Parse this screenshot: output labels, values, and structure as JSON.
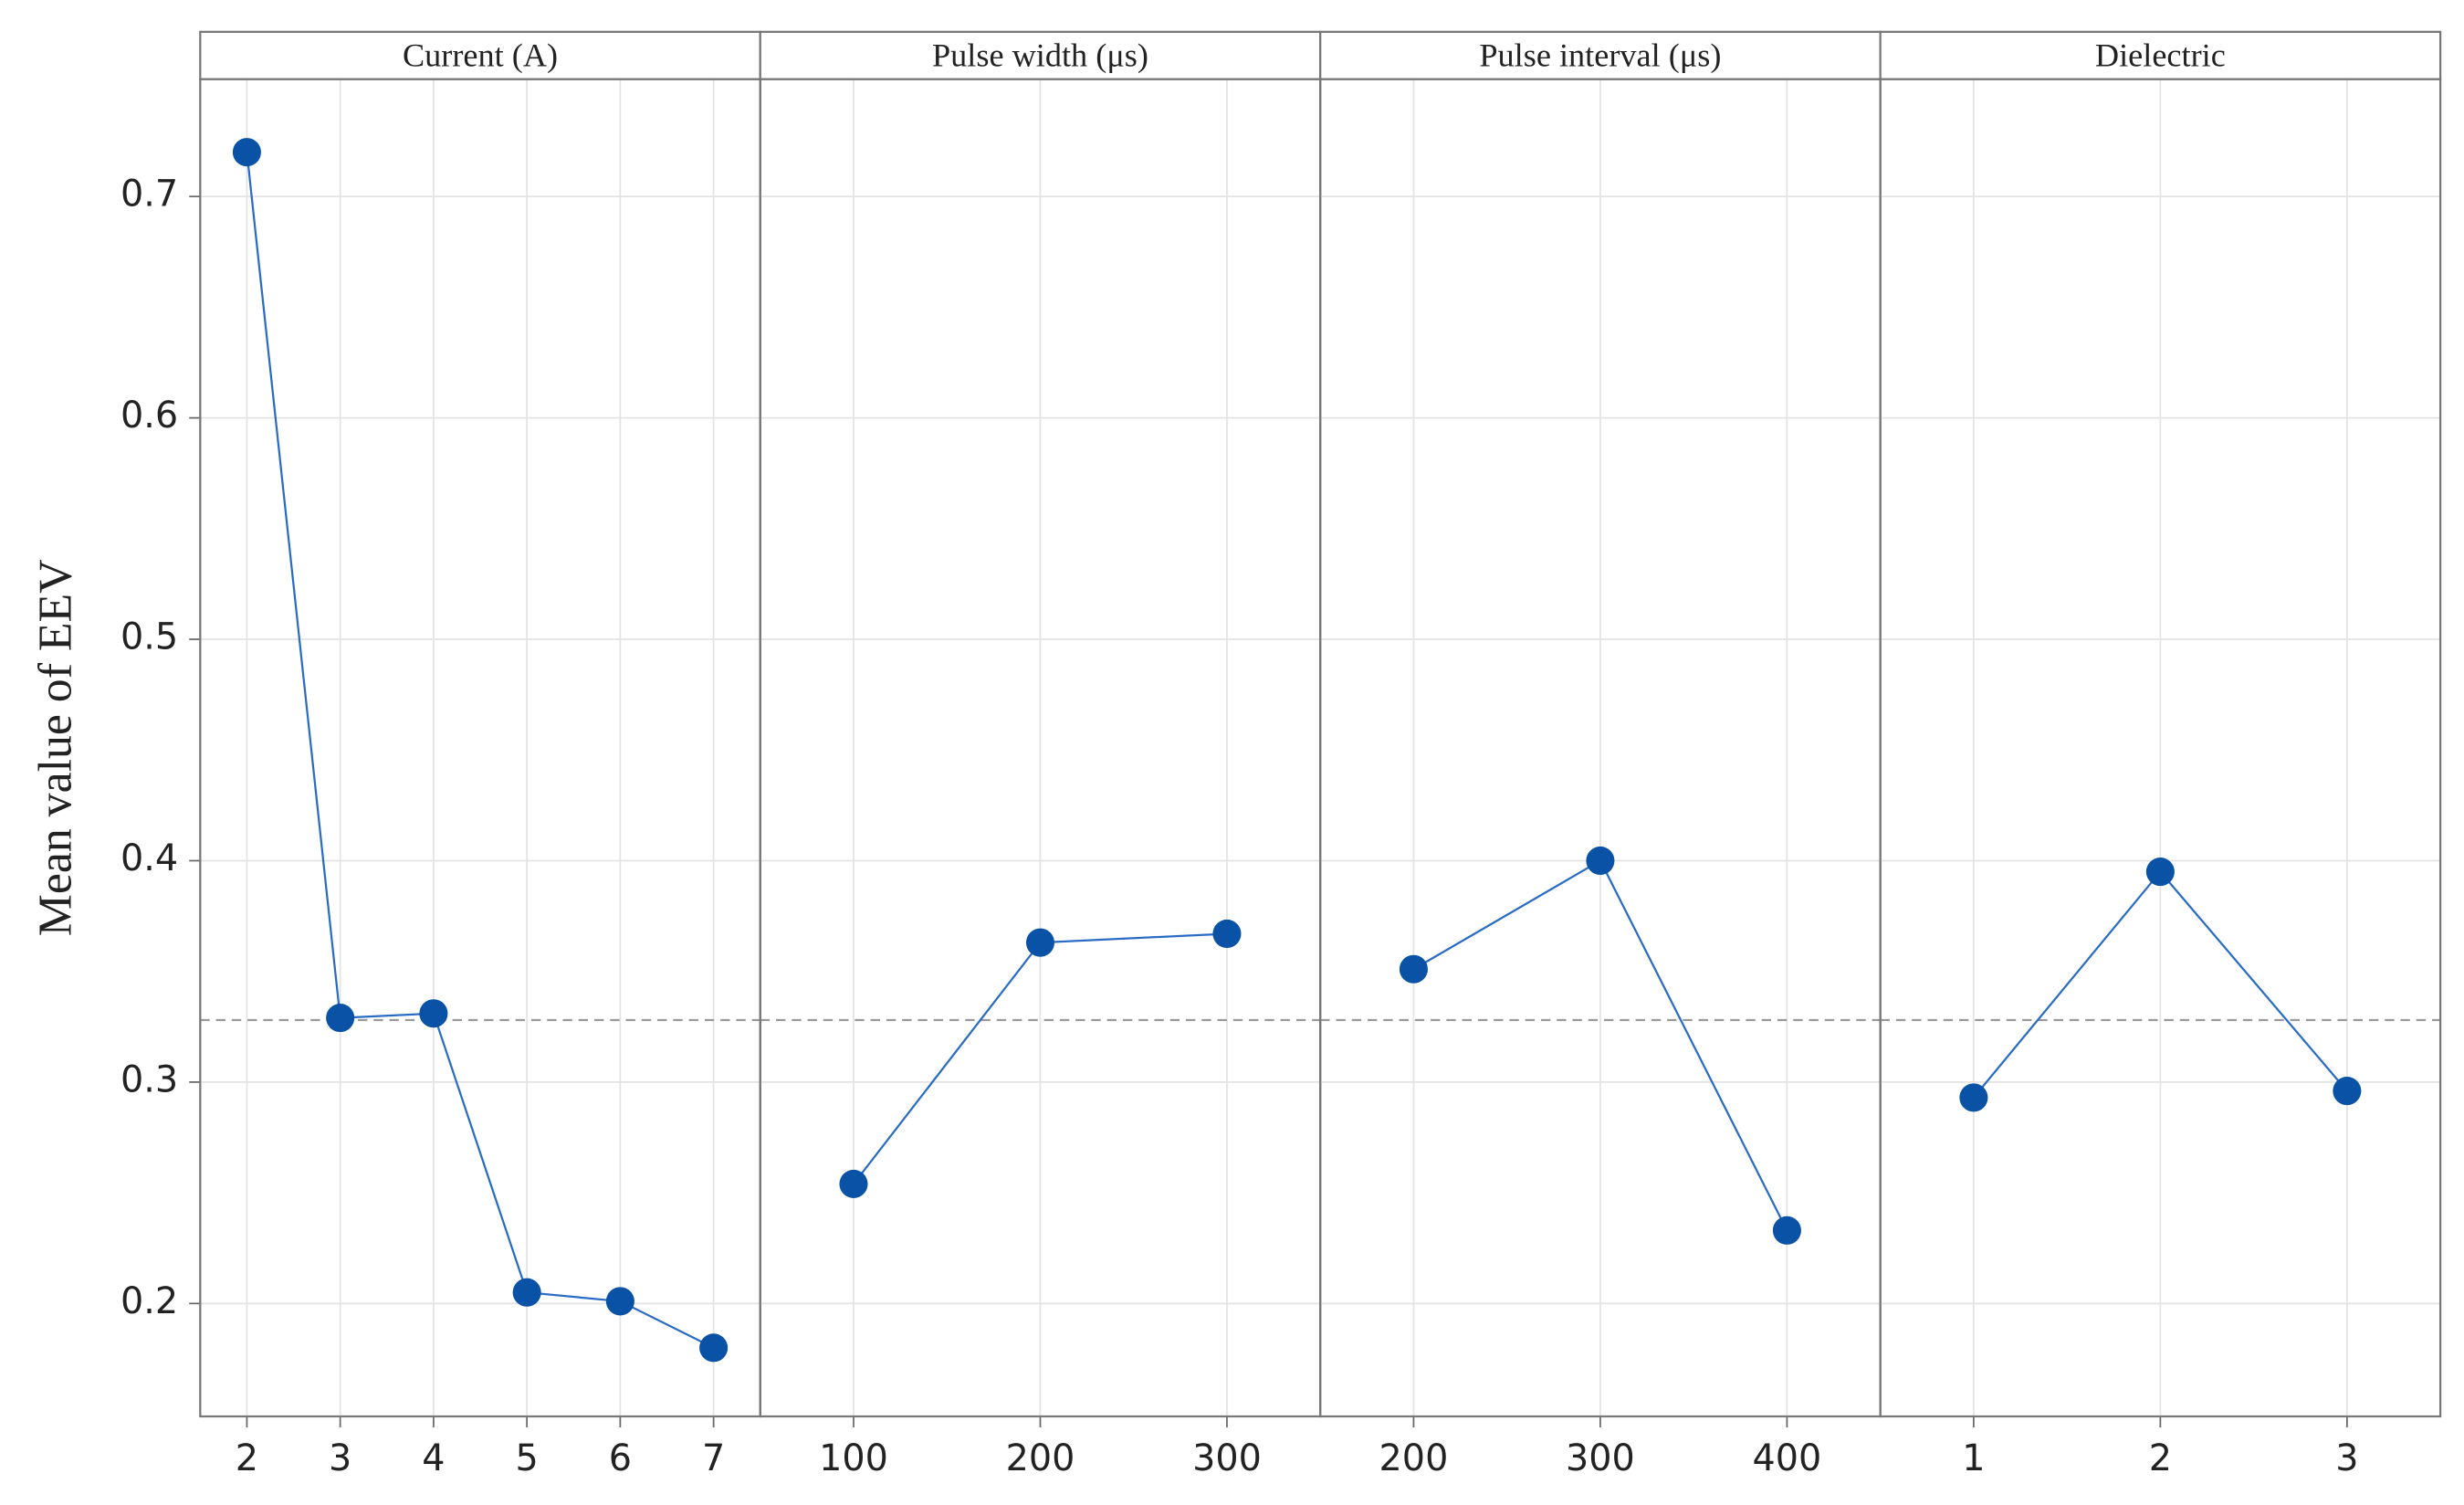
{
  "chart_data": [
    {
      "type": "line",
      "title": "Current (A)",
      "y_label": "Mean value of EEV",
      "x": [
        2,
        3,
        4,
        5,
        6,
        7
      ],
      "values": [
        0.72,
        0.329,
        0.331,
        0.205,
        0.201,
        0.18
      ],
      "color": "#2a6cc4",
      "marker_color": "#0a52a5",
      "xlim": [
        1.5,
        7.5
      ],
      "xticks": [
        2,
        3,
        4,
        5,
        6,
        7
      ],
      "ylim": [
        0.149,
        0.753
      ],
      "yticks": [
        0.2,
        0.3,
        0.4,
        0.5,
        0.6,
        0.7
      ],
      "hline": 0.328,
      "grid": true
    },
    {
      "type": "line",
      "title": "Pulse width (μs)",
      "x": [
        100,
        200,
        300
      ],
      "values": [
        0.254,
        0.363,
        0.367
      ],
      "color": "#2a6cc4",
      "marker_color": "#0a52a5",
      "xlim": [
        50,
        350
      ],
      "xticks": [
        100,
        200,
        300
      ],
      "ylim": [
        0.149,
        0.753
      ],
      "yticks": [
        0.2,
        0.3,
        0.4,
        0.5,
        0.6,
        0.7
      ],
      "hline": 0.328,
      "grid": true
    },
    {
      "type": "line",
      "title": "Pulse interval (μs)",
      "x": [
        200,
        300,
        400
      ],
      "values": [
        0.351,
        0.4,
        0.233
      ],
      "color": "#2a6cc4",
      "marker_color": "#0a52a5",
      "xlim": [
        150,
        450
      ],
      "xticks": [
        200,
        300,
        400
      ],
      "ylim": [
        0.149,
        0.753
      ],
      "yticks": [
        0.2,
        0.3,
        0.4,
        0.5,
        0.6,
        0.7
      ],
      "hline": 0.328,
      "grid": true
    },
    {
      "type": "line",
      "title": "Dielectric",
      "x": [
        1,
        2,
        3
      ],
      "values": [
        0.293,
        0.395,
        0.296
      ],
      "color": "#2a6cc4",
      "marker_color": "#0a52a5",
      "xlim": [
        0.5,
        3.5
      ],
      "xticks": [
        1,
        2,
        3
      ],
      "ylim": [
        0.149,
        0.753
      ],
      "yticks": [
        0.2,
        0.3,
        0.4,
        0.5,
        0.6,
        0.7
      ],
      "hline": 0.328,
      "grid": true
    }
  ]
}
